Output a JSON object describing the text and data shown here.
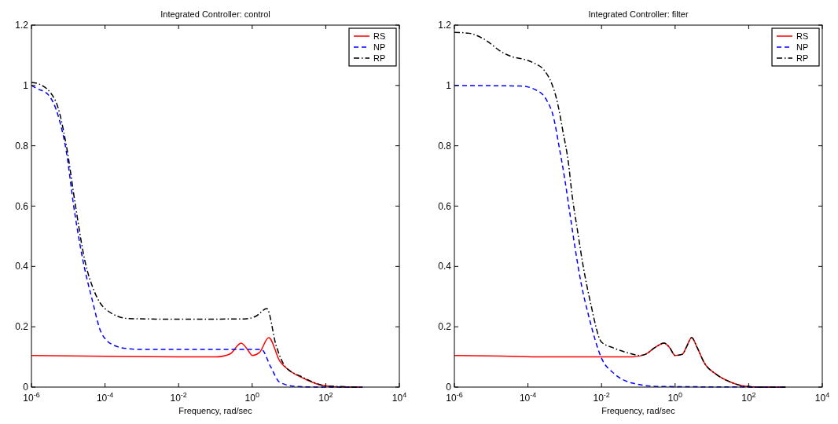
{
  "chart_data": [
    {
      "type": "line",
      "title": "Integrated Controller: control",
      "xlabel": "Frequency, rad/sec",
      "log": "x",
      "grid": false,
      "legend": "top right",
      "xlim": [
        1e-06,
        10000
      ],
      "xticks": [
        {
          "value": 1e-06,
          "label": "10$^{-6}$"
        },
        {
          "value": 0.0001,
          "label": "10$^{-4}$"
        },
        {
          "value": 0.01,
          "label": "10$^{-2}$"
        },
        {
          "value": 1,
          "label": "10$^{0}$"
        },
        {
          "value": 100,
          "label": "10$^{2}$"
        },
        {
          "value": 10000,
          "label": "10$^{4}$"
        }
      ],
      "ylim": [
        0,
        1.2
      ],
      "yticks": [
        0,
        0.2,
        0.4,
        0.6,
        0.8,
        1,
        1.2
      ],
      "series": [
        {
          "name": "RS",
          "color": "#ff0000",
          "line_style": "solid",
          "x": [
            1e-06,
            0.0001,
            0.01,
            0.1,
            0.251,
            0.501,
            0.794,
            1,
            1.58,
            2.82,
            5.62,
            11.2,
            28.2,
            79.4,
            316,
            1000
          ],
          "values": [
            0.105,
            0.102,
            0.1,
            0.1,
            0.11,
            0.146,
            0.12,
            0.105,
            0.115,
            0.164,
            0.086,
            0.052,
            0.026,
            0.006,
            0,
            0
          ]
        },
        {
          "name": "NP",
          "color": "#0000ff",
          "line_style": "dashed",
          "x": [
            1e-06,
            1.41e-06,
            2.82e-06,
            5.62e-06,
            8.91e-06,
            1.41e-05,
            2.51e-05,
            4.47e-05,
            7.94e-05,
            0.000178,
            0.000447,
            0.001,
            1.78,
            3.16,
            5.62,
            15.8,
            100,
            1000
          ],
          "values": [
            1.0,
            0.99,
            0.97,
            0.89,
            0.78,
            0.6,
            0.42,
            0.29,
            0.18,
            0.138,
            0.127,
            0.125,
            0.125,
            0.068,
            0.016,
            0.002,
            0,
            0
          ]
        },
        {
          "name": "RP",
          "color": "#000000",
          "line_style": "dashdot",
          "x": [
            1e-06,
            1.58e-06,
            4.47e-06,
            8.91e-06,
            1.58e-05,
            2.82e-05,
            5.01e-05,
            0.0001,
            0.000447,
            0.01,
            0.631,
            1.26,
            2.51,
            4.47,
            7.94,
            22.4,
            63.1,
            100,
            1000
          ],
          "values": [
            1.01,
            1.005,
            0.95,
            0.8,
            0.6,
            0.42,
            0.32,
            0.26,
            0.227,
            0.225,
            0.226,
            0.235,
            0.26,
            0.138,
            0.068,
            0.034,
            0.01,
            0.004,
            0
          ]
        }
      ]
    },
    {
      "type": "line",
      "title": "Integrated Controller: filter",
      "xlabel": "Frequency, rad/sec",
      "log": "x",
      "grid": false,
      "legend": "top right",
      "xlim": [
        1e-06,
        10000
      ],
      "xticks": [
        {
          "value": 1e-06,
          "label": "10$^{-6}$"
        },
        {
          "value": 0.0001,
          "label": "10$^{-4}$"
        },
        {
          "value": 0.01,
          "label": "10$^{-2}$"
        },
        {
          "value": 1,
          "label": "10$^{0}$"
        },
        {
          "value": 100,
          "label": "10$^{2}$"
        },
        {
          "value": 10000,
          "label": "10$^{4}$"
        }
      ],
      "ylim": [
        0,
        1.2
      ],
      "yticks": [
        0,
        0.2,
        0.4,
        0.6,
        0.8,
        1,
        1.2
      ],
      "series": [
        {
          "name": "RS",
          "color": "#ff0000",
          "line_style": "solid",
          "x": [
            1e-06,
            2e-05,
            0.000251,
            0.0708,
            0.158,
            0.282,
            0.501,
            0.708,
            1,
            1.58,
            2,
            2.82,
            3.98,
            6.31,
            12.6,
            31.6,
            70.8,
            200,
            1000
          ],
          "values": [
            0.105,
            0.103,
            0.1,
            0.1,
            0.109,
            0.131,
            0.146,
            0.131,
            0.105,
            0.109,
            0.131,
            0.164,
            0.131,
            0.079,
            0.044,
            0.017,
            0.004,
            0,
            0
          ]
        },
        {
          "name": "NP",
          "color": "#0000ff",
          "line_style": "dashed",
          "x": [
            1e-06,
            6.31e-05,
            0.000178,
            0.000316,
            0.000501,
            0.000708,
            0.001,
            0.00141,
            0.002,
            0.00282,
            0.00447,
            0.01,
            0.0224,
            0.0708,
            0.355,
            1000
          ],
          "values": [
            1.0,
            0.998,
            0.983,
            0.953,
            0.892,
            0.795,
            0.69,
            0.568,
            0.446,
            0.341,
            0.236,
            0.096,
            0.044,
            0.013,
            0.002,
            0
          ]
        },
        {
          "name": "RP",
          "color": "#000000",
          "line_style": "dashdot",
          "x": [
            1e-06,
            2.51e-06,
            6.31e-06,
            2e-05,
            3.98e-05,
            7.08e-05,
            0.000141,
            0.000282,
            0.000447,
            0.000631,
            0.000891,
            0.00126,
            0.00158,
            0.00224,
            0.00316,
            0.00501,
            0.01,
            0.02,
            0.0501,
            0.112,
            0.158,
            0.282,
            0.501,
            0.708,
            1,
            1.58,
            2,
            2.82,
            3.98,
            6.31,
            12.6,
            31.6,
            70.8,
            200,
            1000
          ],
          "values": [
            1.176,
            1.173,
            1.154,
            1.11,
            1.094,
            1.088,
            1.075,
            1.049,
            1.005,
            0.944,
            0.848,
            0.743,
            0.638,
            0.516,
            0.402,
            0.28,
            0.149,
            0.131,
            0.114,
            0.105,
            0.109,
            0.131,
            0.146,
            0.131,
            0.105,
            0.109,
            0.131,
            0.164,
            0.131,
            0.079,
            0.044,
            0.017,
            0.004,
            0,
            0
          ]
        }
      ]
    }
  ]
}
